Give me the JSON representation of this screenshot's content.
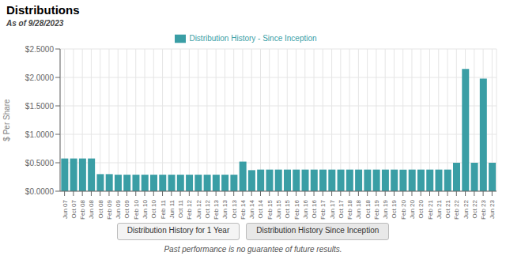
{
  "chart_data": {
    "type": "bar",
    "title": "Distributions",
    "subtitle": "As of 9/28/2023",
    "ylabel": "$ Per Share",
    "annotations": [
      "Distribution History for 1 Year",
      "Distribution History Since Inception",
      "Past performance is no guarantee of future results."
    ],
    "categories": [
      "Jun 07",
      "Oct 07",
      "Feb 08",
      "Jun 08",
      "Oct 08",
      "Feb 09",
      "Jun 09",
      "Oct 09",
      "Feb 10",
      "Jun 10",
      "Oct 10",
      "Feb 11",
      "Jun 11",
      "Oct 11",
      "Feb 12",
      "Jun 12",
      "Oct 12",
      "Feb 13",
      "Jun 13",
      "Oct 13",
      "Feb 14",
      "Jun 14",
      "Oct 14",
      "Feb 15",
      "Jun 15",
      "Oct 15",
      "Feb 16",
      "Jun 16",
      "Oct 16",
      "Feb 17",
      "Jun 17",
      "Oct 17",
      "Feb 18",
      "Jun 18",
      "Oct 18",
      "Feb 19",
      "Jun 19",
      "Oct 19",
      "Feb 20",
      "Jun 20",
      "Oct 20",
      "Feb 21",
      "Jun 21",
      "Oct 21",
      "Feb 22",
      "Jun 22",
      "Oct 22",
      "Feb 23",
      "Jun 23"
    ],
    "series": [
      {
        "name": "Distribution History - Since Inception",
        "color": "#3a9ea5",
        "values": [
          0.575,
          0.575,
          0.575,
          0.575,
          0.3,
          0.3,
          0.29,
          0.29,
          0.29,
          0.29,
          0.29,
          0.29,
          0.29,
          0.29,
          0.29,
          0.29,
          0.29,
          0.29,
          0.29,
          0.29,
          0.52,
          0.37,
          0.38,
          0.38,
          0.38,
          0.38,
          0.38,
          0.38,
          0.38,
          0.38,
          0.38,
          0.38,
          0.38,
          0.38,
          0.38,
          0.38,
          0.38,
          0.38,
          0.38,
          0.38,
          0.38,
          0.38,
          0.38,
          0.38,
          0.5,
          2.15,
          0.5,
          1.98,
          0.5
        ]
      }
    ],
    "ylim": [
      0,
      2.5
    ],
    "yticks": [
      {
        "value": 0.0,
        "label": "$0.0000"
      },
      {
        "value": 0.5,
        "label": "$0.5000"
      },
      {
        "value": 1.0,
        "label": "$1.0000"
      },
      {
        "value": 1.5,
        "label": "$1.5000"
      },
      {
        "value": 2.0,
        "label": "$2.0000"
      },
      {
        "value": 2.5,
        "label": "$2.5000"
      }
    ],
    "grid": true,
    "legend": "top"
  }
}
